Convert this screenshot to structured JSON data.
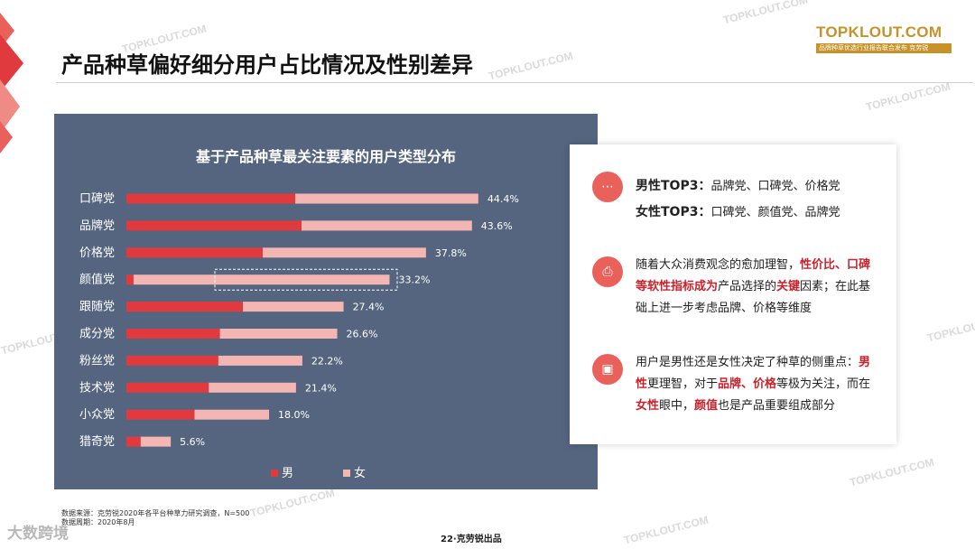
{
  "page_title": "产品种草偏好细分用户占比情况及性别差异",
  "logo": {
    "main": "TOPKLOUT.COM",
    "sub": "品牌种草优选行业报告联合发布 克劳锐"
  },
  "watermark_text": "TOPKLOUT.COM",
  "chart_data": {
    "type": "bar",
    "orientation": "horizontal",
    "stacked": true,
    "title": "基于产品种草最关注要素的用户类型分布",
    "categories": [
      "口碑党",
      "品牌党",
      "价格党",
      "颜值党",
      "跟随党",
      "成分党",
      "粉丝党",
      "技术党",
      "小众党",
      "猎奇党"
    ],
    "totals": [
      44.4,
      43.6,
      37.8,
      33.2,
      27.4,
      26.6,
      22.2,
      21.4,
      18.0,
      5.6
    ],
    "total_labels": [
      "44.4%",
      "43.6%",
      "37.8%",
      "33.2%",
      "27.4%",
      "26.6%",
      "22.2%",
      "21.4%",
      "18.0%",
      "5.6%"
    ],
    "series": [
      {
        "name": "男",
        "color": "#e03a3e",
        "values": [
          21.3,
          22.1,
          17.2,
          0.9,
          14.7,
          11.8,
          11.6,
          10.4,
          8.6,
          1.8
        ]
      },
      {
        "name": "女",
        "color": "#f4b6b3",
        "values": [
          23.1,
          21.5,
          20.6,
          32.3,
          12.7,
          14.8,
          10.6,
          11.0,
          9.4,
          3.8
        ]
      }
    ],
    "highlighted_category": "颜值党",
    "xlim": [
      0,
      45
    ],
    "legend_position": "bottom"
  },
  "insights": [
    {
      "icon": "chat-icon",
      "lines": [
        {
          "label": "男性TOP3：",
          "text": "品牌党、口碑党、价格党"
        },
        {
          "label": "女性TOP3：",
          "text": "口碑党、颜值党、品牌党"
        }
      ]
    },
    {
      "icon": "printer-icon",
      "p1": "随着大众消费观念的愈加理智，",
      "h1": "性价比、口碑等软性指标成为",
      "p2": "产品选择的",
      "h2": "关键",
      "p3": "因素；在此基础上进一步考虑品牌、价格等维度"
    },
    {
      "icon": "sofa-icon",
      "p1": "用户是男性还是女性决定了种草的侧重点：",
      "h1": "男性",
      "p2": "更理智，对于",
      "h2": "品牌、价格",
      "p3": "等极为关注，而在",
      "h3": "女性",
      "p4": "眼中，",
      "h4": "颜值",
      "p5": "也是产品重要组成部分"
    }
  ],
  "footnote": {
    "source": "数据来源：克劳锐2020年各平台种草力研究调查，N=500",
    "date": "数据周期：2020年8月"
  },
  "page_number": "22·克劳锐出品",
  "corner_brand": "大数跨境"
}
